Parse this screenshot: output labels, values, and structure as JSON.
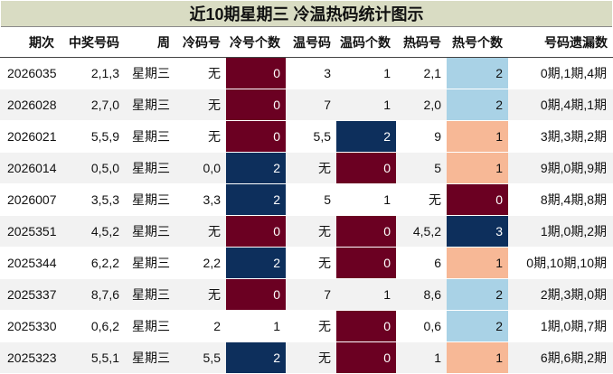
{
  "title": "近10期星期三 冷温热码统计图示",
  "columns": [
    "期次",
    "中奖号码",
    "周",
    "冷码号",
    "冷号个数",
    "温号码",
    "温码个数",
    "热码号",
    "热号个数",
    "号码遗漏数"
  ],
  "rows": [
    {
      "issue": "2026035",
      "winning": "2,1,3",
      "week": "星期三",
      "cold_nums": "无",
      "cold_count": "0",
      "warm_nums": "3",
      "warm_count": "1",
      "hot_nums": "2,1",
      "hot_count": "2",
      "missing": "0期,1期,4期"
    },
    {
      "issue": "2026028",
      "winning": "2,7,0",
      "week": "星期三",
      "cold_nums": "无",
      "cold_count": "0",
      "warm_nums": "7",
      "warm_count": "1",
      "hot_nums": "2,0",
      "hot_count": "2",
      "missing": "0期,4期,1期"
    },
    {
      "issue": "2026021",
      "winning": "5,5,9",
      "week": "星期三",
      "cold_nums": "无",
      "cold_count": "0",
      "warm_nums": "5,5",
      "warm_count": "2",
      "hot_nums": "9",
      "hot_count": "1",
      "missing": "3期,3期,2期"
    },
    {
      "issue": "2026014",
      "winning": "0,5,0",
      "week": "星期三",
      "cold_nums": "0,0",
      "cold_count": "2",
      "warm_nums": "无",
      "warm_count": "0",
      "hot_nums": "5",
      "hot_count": "1",
      "missing": "9期,0期,9期"
    },
    {
      "issue": "2026007",
      "winning": "3,5,3",
      "week": "星期三",
      "cold_nums": "3,3",
      "cold_count": "2",
      "warm_nums": "5",
      "warm_count": "1",
      "hot_nums": "无",
      "hot_count": "0",
      "missing": "8期,4期,8期"
    },
    {
      "issue": "2025351",
      "winning": "4,5,2",
      "week": "星期三",
      "cold_nums": "无",
      "cold_count": "0",
      "warm_nums": "无",
      "warm_count": "0",
      "hot_nums": "4,5,2",
      "hot_count": "3",
      "missing": "1期,0期,2期"
    },
    {
      "issue": "2025344",
      "winning": "6,2,2",
      "week": "星期三",
      "cold_nums": "2,2",
      "cold_count": "2",
      "warm_nums": "无",
      "warm_count": "0",
      "hot_nums": "6",
      "hot_count": "1",
      "missing": "0期,10期,10期"
    },
    {
      "issue": "2025337",
      "winning": "8,7,6",
      "week": "星期三",
      "cold_nums": "无",
      "cold_count": "0",
      "warm_nums": "7",
      "warm_count": "1",
      "hot_nums": "8,6",
      "hot_count": "2",
      "missing": "2期,3期,0期"
    },
    {
      "issue": "2025330",
      "winning": "0,6,2",
      "week": "星期三",
      "cold_nums": "2",
      "cold_count": "1",
      "warm_nums": "无",
      "warm_count": "0",
      "hot_nums": "0,6",
      "hot_count": "2",
      "missing": "1期,0期,7期"
    },
    {
      "issue": "2025323",
      "winning": "5,5,1",
      "week": "星期三",
      "cold_nums": "5,5",
      "cold_count": "2",
      "warm_nums": "无",
      "warm_count": "0",
      "hot_nums": "1",
      "hot_count": "1",
      "missing": "6期,6期,2期"
    }
  ],
  "colors": {
    "title_bg": "#d9dcc3",
    "count_0": "#6b0022",
    "count_2_cold_warm": "#0d2f5c",
    "hot_1": "#f7b896",
    "hot_2": "#a9d2e6",
    "hot_3": "#0d2f5c"
  }
}
